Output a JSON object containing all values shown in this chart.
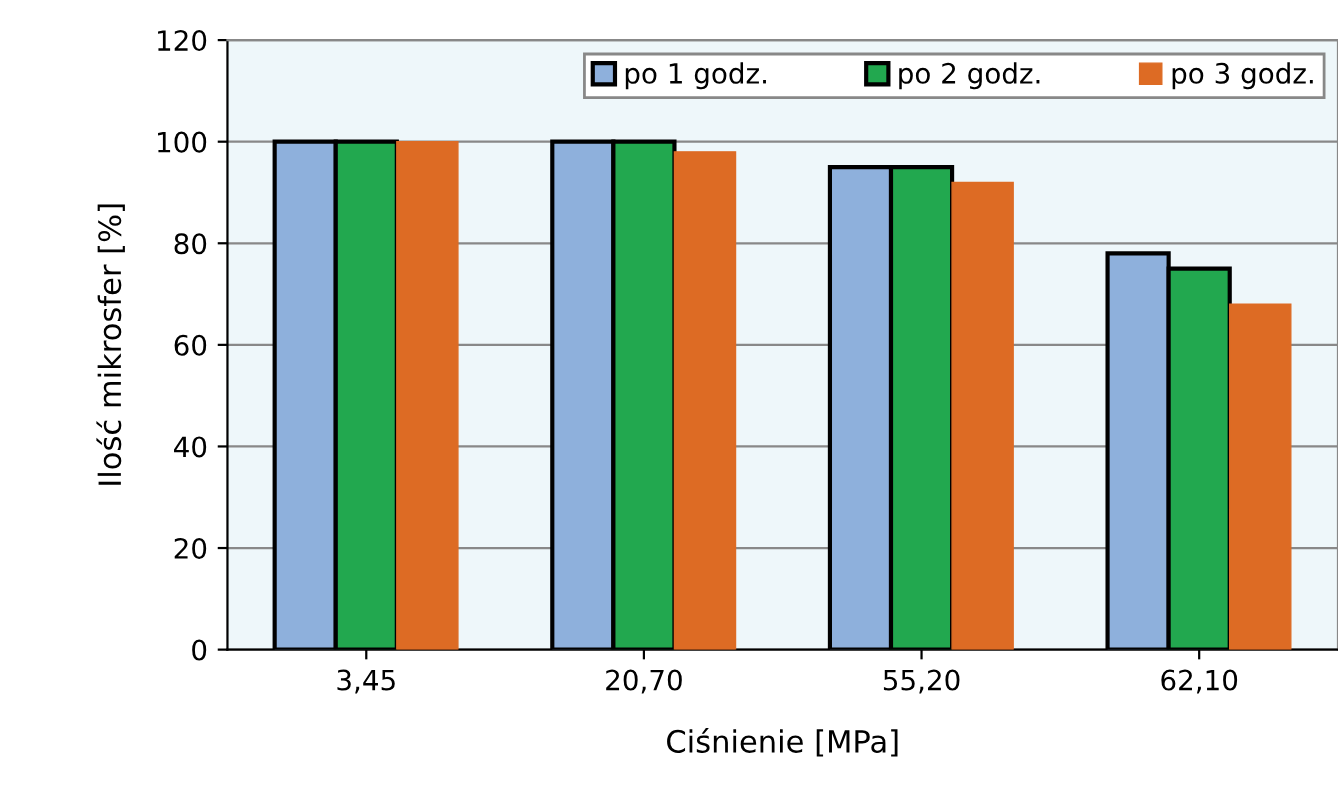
{
  "chart_data": {
    "type": "bar",
    "xlabel": "Ciśnienie [MPa]",
    "ylabel": "Ilość mikrosfer [%]",
    "categories": [
      "3,45",
      "20,70",
      "55,20",
      "62,10"
    ],
    "series": [
      {
        "name": "po 1 godz.",
        "color": "#8eb0dc",
        "values": [
          100,
          100,
          95,
          78
        ]
      },
      {
        "name": "po 2 godz.",
        "color": "#22a84f",
        "values": [
          100,
          100,
          95,
          75
        ]
      },
      {
        "name": "po 3 godz.",
        "color": "#dd6b24",
        "values": [
          100,
          98,
          92,
          68
        ]
      }
    ],
    "ylim": [
      0,
      120
    ],
    "yticks": [
      0,
      20,
      40,
      60,
      80,
      100,
      120
    ],
    "grid": "y",
    "legend": "top right"
  }
}
